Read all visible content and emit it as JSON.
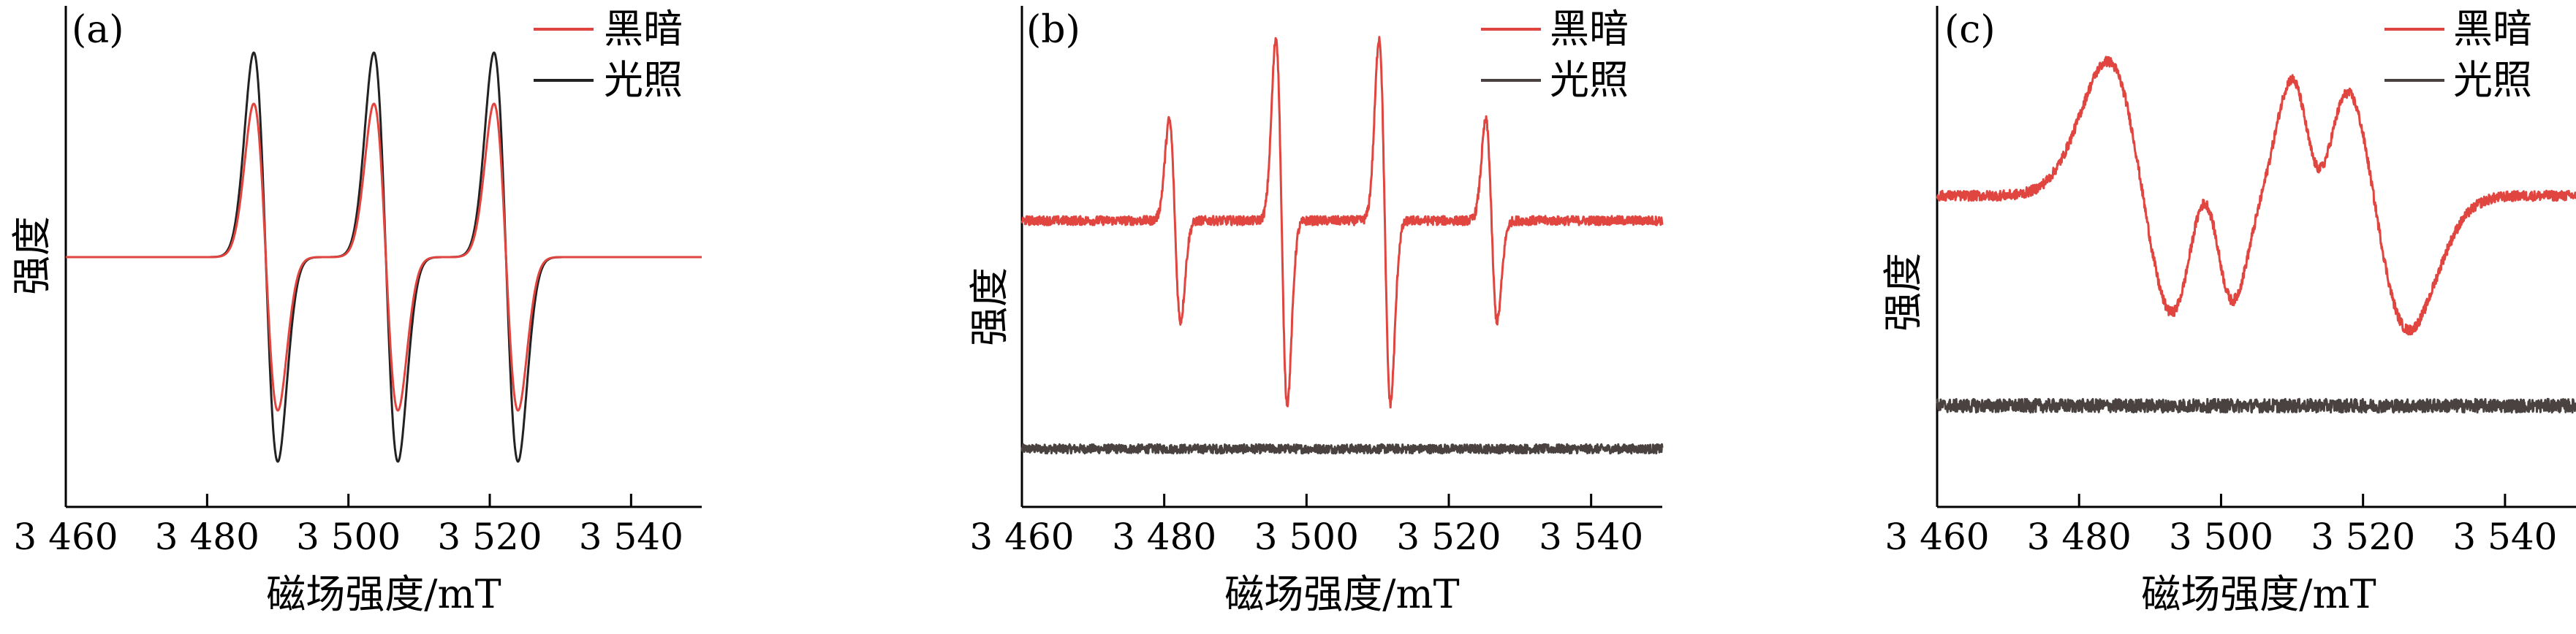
{
  "chart_data": [
    {
      "type": "line",
      "panel_label": "(a)",
      "xlabel": "磁场强度/mT",
      "ylabel": "强度",
      "xlim": [
        3460,
        3550
      ],
      "xticks": [
        3460,
        3480,
        3500,
        3520,
        3540
      ],
      "xtick_labels": [
        "3 460",
        "3 480",
        "3 500",
        "3 520",
        "3 540"
      ],
      "legend_position": "top-right",
      "grid": false,
      "lines": [
        {
          "position": 3488.3,
          "width": 1.7
        },
        {
          "position": 3505.3,
          "width": 1.7
        },
        {
          "position": 3522.3,
          "width": 1.7
        }
      ],
      "series": [
        {
          "name": "黑暗",
          "color": "#e0453f",
          "baseline": 0.0,
          "amplitudes": [
            0.75,
            0.75,
            0.75
          ],
          "noise": 0.0
        },
        {
          "name": "光照",
          "color": "#222222",
          "baseline": 0.0,
          "amplitudes": [
            1.0,
            1.0,
            1.0
          ],
          "noise": 0.0
        }
      ]
    },
    {
      "type": "line",
      "panel_label": "(b)",
      "xlabel": "磁场强度/mT",
      "ylabel": "强度",
      "xlim": [
        3460,
        3550
      ],
      "xticks": [
        3460,
        3480,
        3500,
        3520,
        3540
      ],
      "xtick_labels": [
        "3 460",
        "3 480",
        "3 500",
        "3 520",
        "3 540"
      ],
      "legend_position": "top-right",
      "grid": false,
      "lines": [
        {
          "position": 3481.5,
          "width": 0.8
        },
        {
          "position": 3496.5,
          "width": 0.8
        },
        {
          "position": 3511.0,
          "width": 0.8
        },
        {
          "position": 3526.0,
          "width": 0.8
        }
      ],
      "series": [
        {
          "name": "黑暗",
          "color": "#e0453f",
          "baseline": 0.0,
          "amplitudes": [
            0.55,
            1.0,
            1.0,
            0.55
          ],
          "noise": 0.025
        },
        {
          "name": "光照",
          "color": "#4a4240",
          "baseline": -1.25,
          "amplitudes": [
            0,
            0,
            0,
            0
          ],
          "noise": 0.025
        }
      ]
    },
    {
      "type": "line",
      "panel_label": "(c)",
      "xlabel": "磁场强度/mT",
      "ylabel": "强度",
      "xlim": [
        3460,
        3550
      ],
      "xticks": [
        3460,
        3480,
        3500,
        3520,
        3540
      ],
      "xtick_labels": [
        "3 460",
        "3 480",
        "3 500",
        "3 520",
        "3 540"
      ],
      "legend_position": "top-right",
      "grid": false,
      "lines": [
        {
          "position": 3489.0,
          "width": 5.0
        },
        {
          "position": 3499.5,
          "width": 2.5
        },
        {
          "position": 3512.0,
          "width": 2.5
        },
        {
          "position": 3521.5,
          "width": 5.0
        }
      ],
      "series": [
        {
          "name": "黑暗",
          "color": "#e0453f",
          "baseline": 0.0,
          "amplitudes": [
            0.8,
            0.5,
            0.5,
            0.8
          ],
          "noise": 0.03
        },
        {
          "name": "光照",
          "color": "#4a4240",
          "baseline": -1.25,
          "amplitudes": [
            0,
            0,
            0,
            0
          ],
          "noise": 0.04
        }
      ]
    }
  ]
}
